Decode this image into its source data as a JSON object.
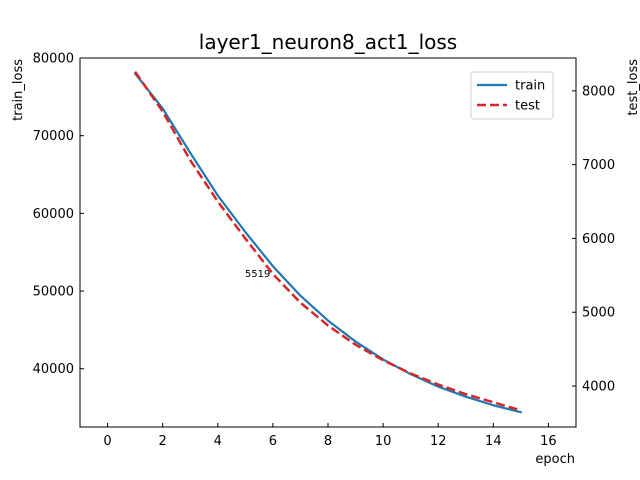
{
  "chart_data": {
    "type": "line",
    "title": "layer1_neuron8_act1_loss",
    "xlabel": "epoch",
    "ylabel_left": "train_loss",
    "ylabel_right": "test_loss",
    "xlim": [
      -1,
      17
    ],
    "ylim_left": [
      32500,
      80000
    ],
    "ylim_right": [
      3445,
      8445
    ],
    "xticks": [
      0,
      2,
      4,
      6,
      8,
      10,
      12,
      14,
      16
    ],
    "yticks_left": [
      40000,
      50000,
      60000,
      70000,
      80000
    ],
    "yticks_right": [
      4000,
      5000,
      6000,
      7000,
      8000
    ],
    "grid": false,
    "legend_position": "upper right",
    "x": [
      1,
      2,
      3,
      4,
      5,
      6,
      7,
      8,
      9,
      10,
      11,
      12,
      13,
      14,
      15
    ],
    "series": [
      {
        "name": "train",
        "axis": "left",
        "color": "#1f77b4",
        "style": "solid",
        "values": [
          78000,
          73500,
          67800,
          62300,
          57600,
          53200,
          49400,
          46200,
          43500,
          41200,
          39300,
          37700,
          36400,
          35300,
          34400
        ]
      },
      {
        "name": "test",
        "axis": "right",
        "color": "#d62728",
        "style": "dashed",
        "values": [
          8260,
          7720,
          7060,
          6500,
          6000,
          5519,
          5130,
          4820,
          4560,
          4350,
          4170,
          4020,
          3890,
          3780,
          3670
        ]
      }
    ],
    "annotations": [
      {
        "text": "5519",
        "x": 6,
        "y": 5519,
        "axis": "right"
      }
    ]
  }
}
